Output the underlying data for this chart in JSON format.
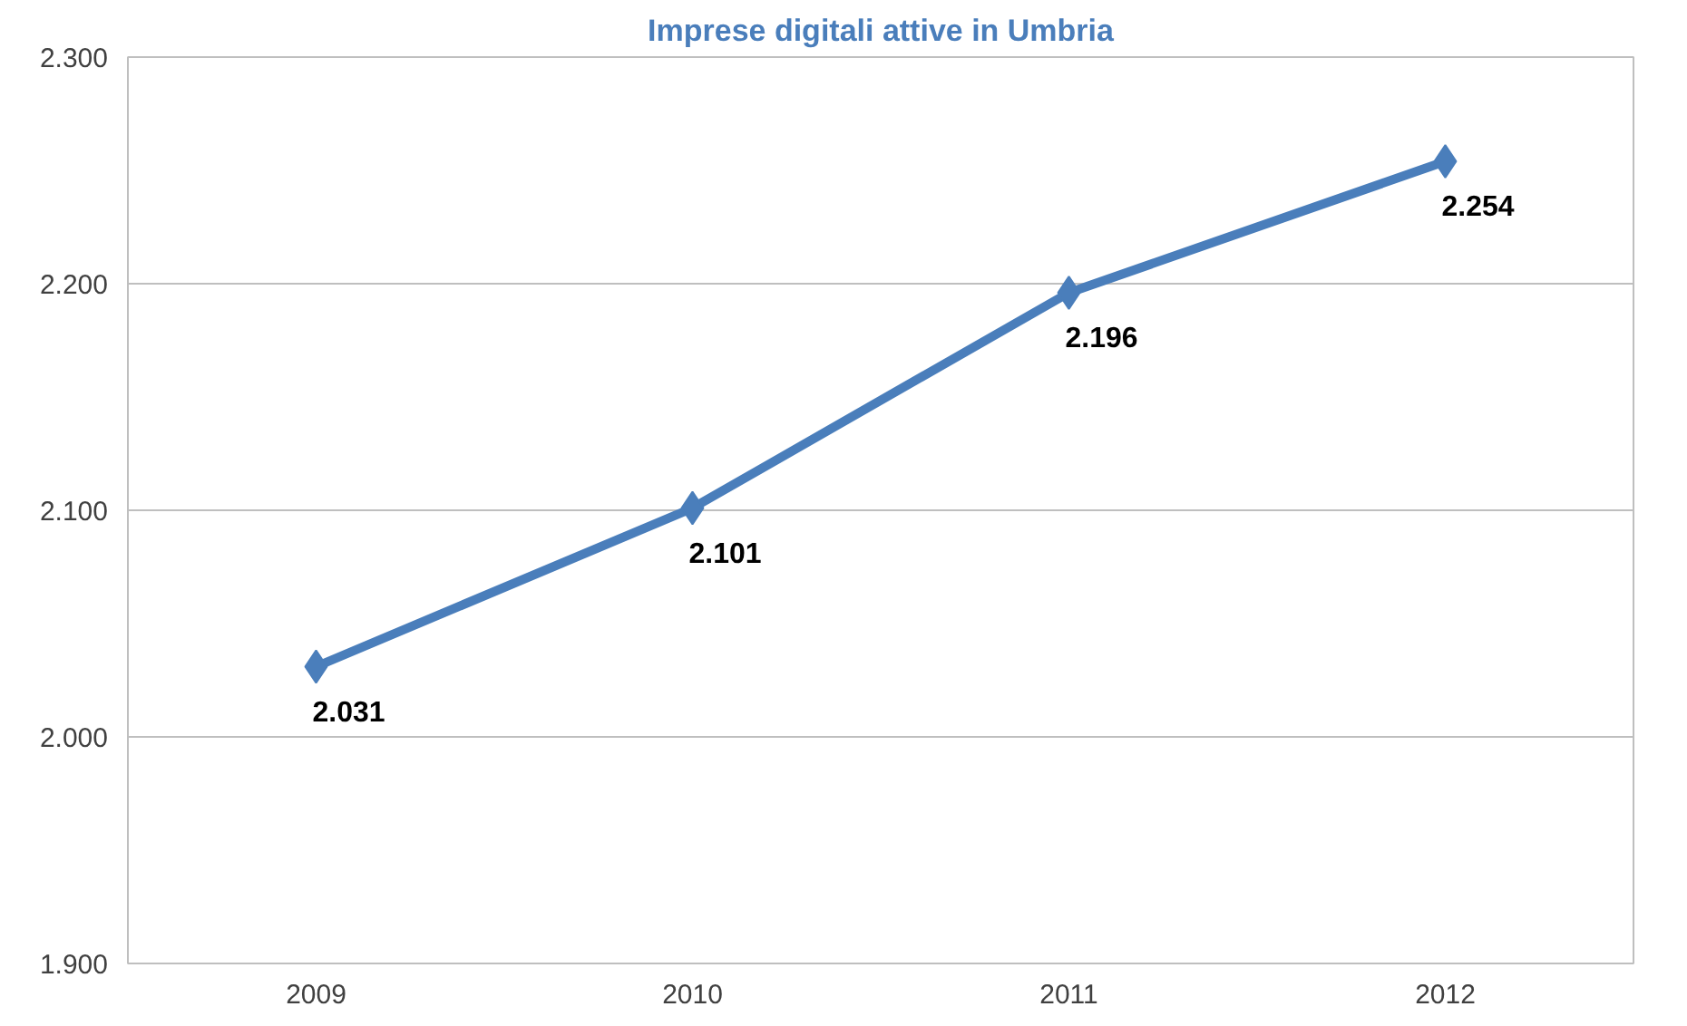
{
  "chart_data": {
    "type": "line",
    "title": "Imprese digitali attive in Umbria",
    "categories": [
      "2009",
      "2010",
      "2011",
      "2012"
    ],
    "values": [
      2031,
      2101,
      2196,
      2254
    ],
    "value_labels": [
      "2.031",
      "2.101",
      "2.196",
      "2.254"
    ],
    "color": "#4a7ebb",
    "marker": "diamond",
    "line_style": "solid",
    "ylim": [
      1900,
      2300
    ],
    "yticks": [
      {
        "value": 1900,
        "label": "1.900"
      },
      {
        "value": 2000,
        "label": "2.000"
      },
      {
        "value": 2100,
        "label": "2.100"
      },
      {
        "value": 2200,
        "label": "2.200"
      },
      {
        "value": 2300,
        "label": "2.300"
      }
    ],
    "grid": "y"
  }
}
